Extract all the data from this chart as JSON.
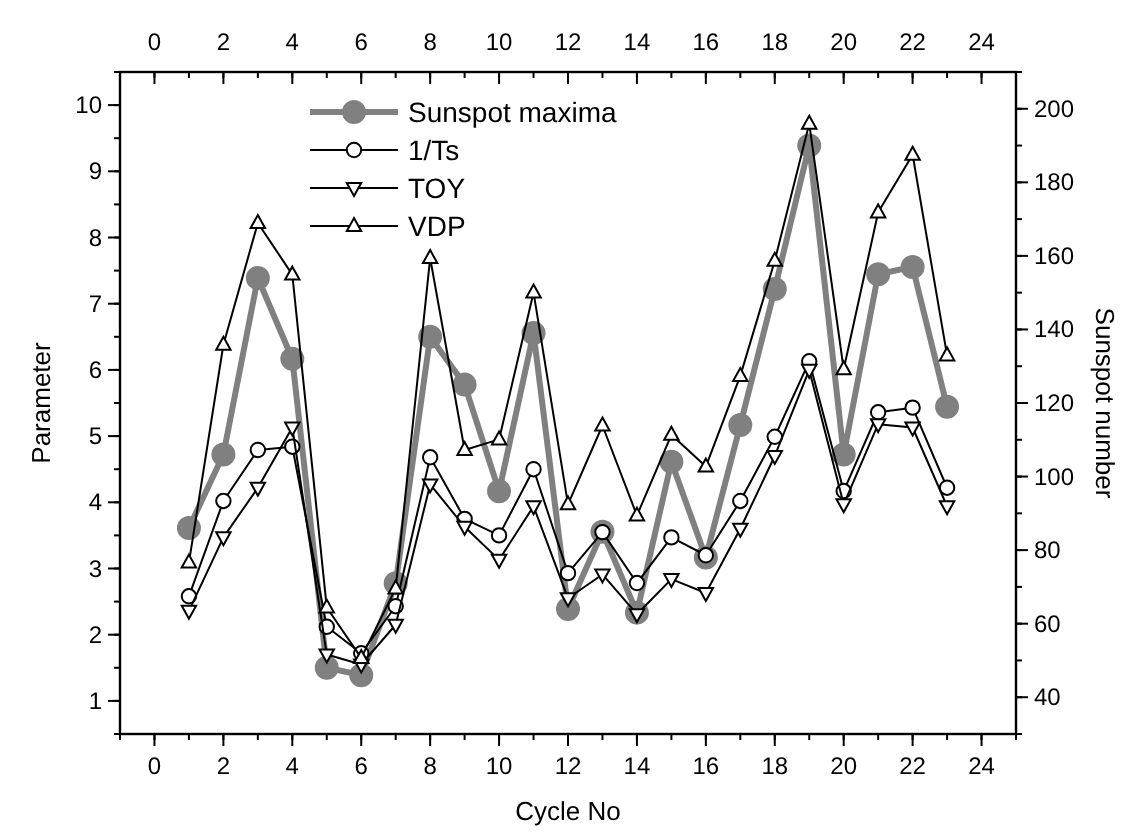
{
  "chart_data": {
    "type": "line",
    "xlabel": "Cycle No",
    "ylabel": "Parameter",
    "y2label": "Sunspot number",
    "x": [
      1,
      2,
      3,
      4,
      5,
      6,
      7,
      8,
      9,
      10,
      11,
      12,
      13,
      14,
      15,
      16,
      17,
      18,
      19,
      20,
      21,
      22,
      23
    ],
    "xlim": [
      -1,
      25
    ],
    "xticks": [
      0,
      2,
      4,
      6,
      8,
      10,
      12,
      14,
      16,
      18,
      20,
      22,
      24
    ],
    "x2lim": [
      -1,
      25
    ],
    "x2ticks": [
      0,
      2,
      4,
      6,
      8,
      10,
      12,
      14,
      16,
      18,
      20,
      22,
      24
    ],
    "ylim": [
      0.5,
      10.5
    ],
    "yticks": [
      1,
      2,
      3,
      4,
      5,
      6,
      7,
      8,
      9,
      10
    ],
    "y2lim": [
      30,
      210
    ],
    "y2ticks": [
      40,
      60,
      80,
      100,
      120,
      140,
      160,
      180,
      200
    ],
    "legend": "top",
    "grid": false,
    "series": [
      {
        "name": "Sunspot maxima",
        "color": "#808080",
        "axis": "y2",
        "marker": "circle",
        "values": [
          86,
          106,
          154,
          132,
          48,
          46,
          71,
          138,
          125,
          96,
          139,
          64,
          85,
          63,
          104,
          78,
          114,
          151,
          190,
          106,
          155,
          157,
          119
        ]
      },
      {
        "name": "1/Ts",
        "color": "#000000",
        "marker": "circle",
        "values": [
          2.58,
          4.02,
          4.79,
          4.84,
          2.12,
          1.72,
          2.43,
          4.68,
          3.75,
          3.5,
          4.5,
          2.93,
          3.55,
          2.78,
          3.47,
          3.2,
          4.02,
          4.99,
          6.13,
          4.17,
          5.36,
          5.43,
          4.22
        ]
      },
      {
        "name": "TOY",
        "color": "#000000",
        "marker": "triangle-down",
        "values": [
          2.36,
          3.47,
          4.22,
          5.13,
          1.7,
          1.55,
          2.15,
          4.27,
          3.63,
          3.13,
          3.94,
          2.55,
          2.91,
          2.31,
          2.84,
          2.63,
          3.6,
          4.7,
          6.0,
          3.97,
          5.18,
          5.13,
          3.94
        ]
      },
      {
        "name": "VDP",
        "color": "#000000",
        "marker": "triangle",
        "values": [
          3.09,
          6.38,
          8.22,
          7.44,
          2.41,
          1.65,
          2.7,
          7.69,
          4.79,
          4.95,
          7.17,
          3.97,
          5.16,
          3.8,
          5.02,
          4.54,
          5.91,
          7.65,
          9.72,
          6.01,
          8.38,
          9.25,
          6.22
        ]
      }
    ]
  }
}
